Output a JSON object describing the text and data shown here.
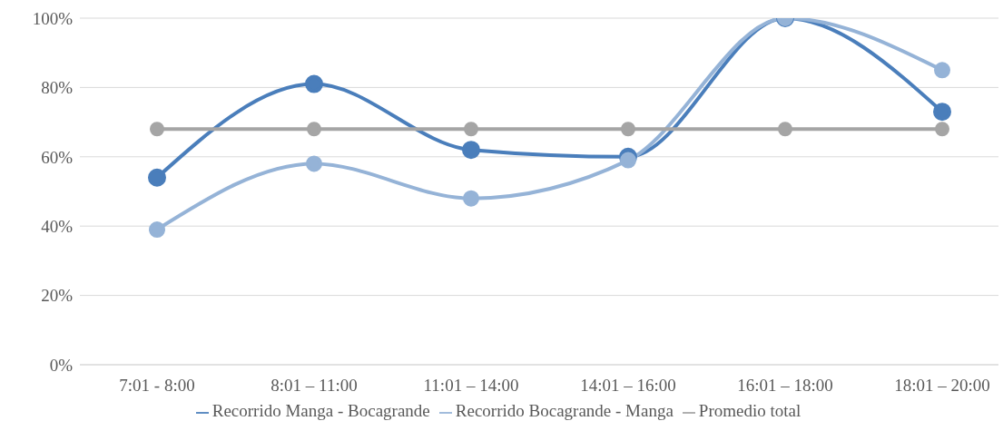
{
  "chart_data": {
    "type": "line",
    "categories": [
      "7:01 - 8:00",
      "8:01 – 11:00",
      "11:01 – 14:00",
      "14:01 – 16:00",
      "16:01 – 18:00",
      "18:01 – 20:00"
    ],
    "series": [
      {
        "name": "Recorrido Manga - Bocagrande",
        "color": "#4a7ebb",
        "values": [
          54,
          81,
          62,
          60,
          100,
          73
        ]
      },
      {
        "name": "Recorrido Bocagrande - Manga",
        "color": "#95b3d7",
        "values": [
          39,
          58,
          48,
          59,
          100,
          85
        ]
      },
      {
        "name": "Promedio total",
        "color": "#a5a5a5",
        "values": [
          68,
          68,
          68,
          68,
          68,
          68
        ]
      }
    ],
    "ylim": [
      0,
      100
    ],
    "yticks": [
      {
        "value": 0,
        "label": "0%"
      },
      {
        "value": 20,
        "label": "20%"
      },
      {
        "value": 40,
        "label": "40%"
      },
      {
        "value": 60,
        "label": "60%"
      },
      {
        "value": 80,
        "label": "80%"
      },
      {
        "value": 100,
        "label": "100%"
      }
    ],
    "grid": "y",
    "legend": "bottom",
    "marker": "circle",
    "line_style": "solid"
  }
}
